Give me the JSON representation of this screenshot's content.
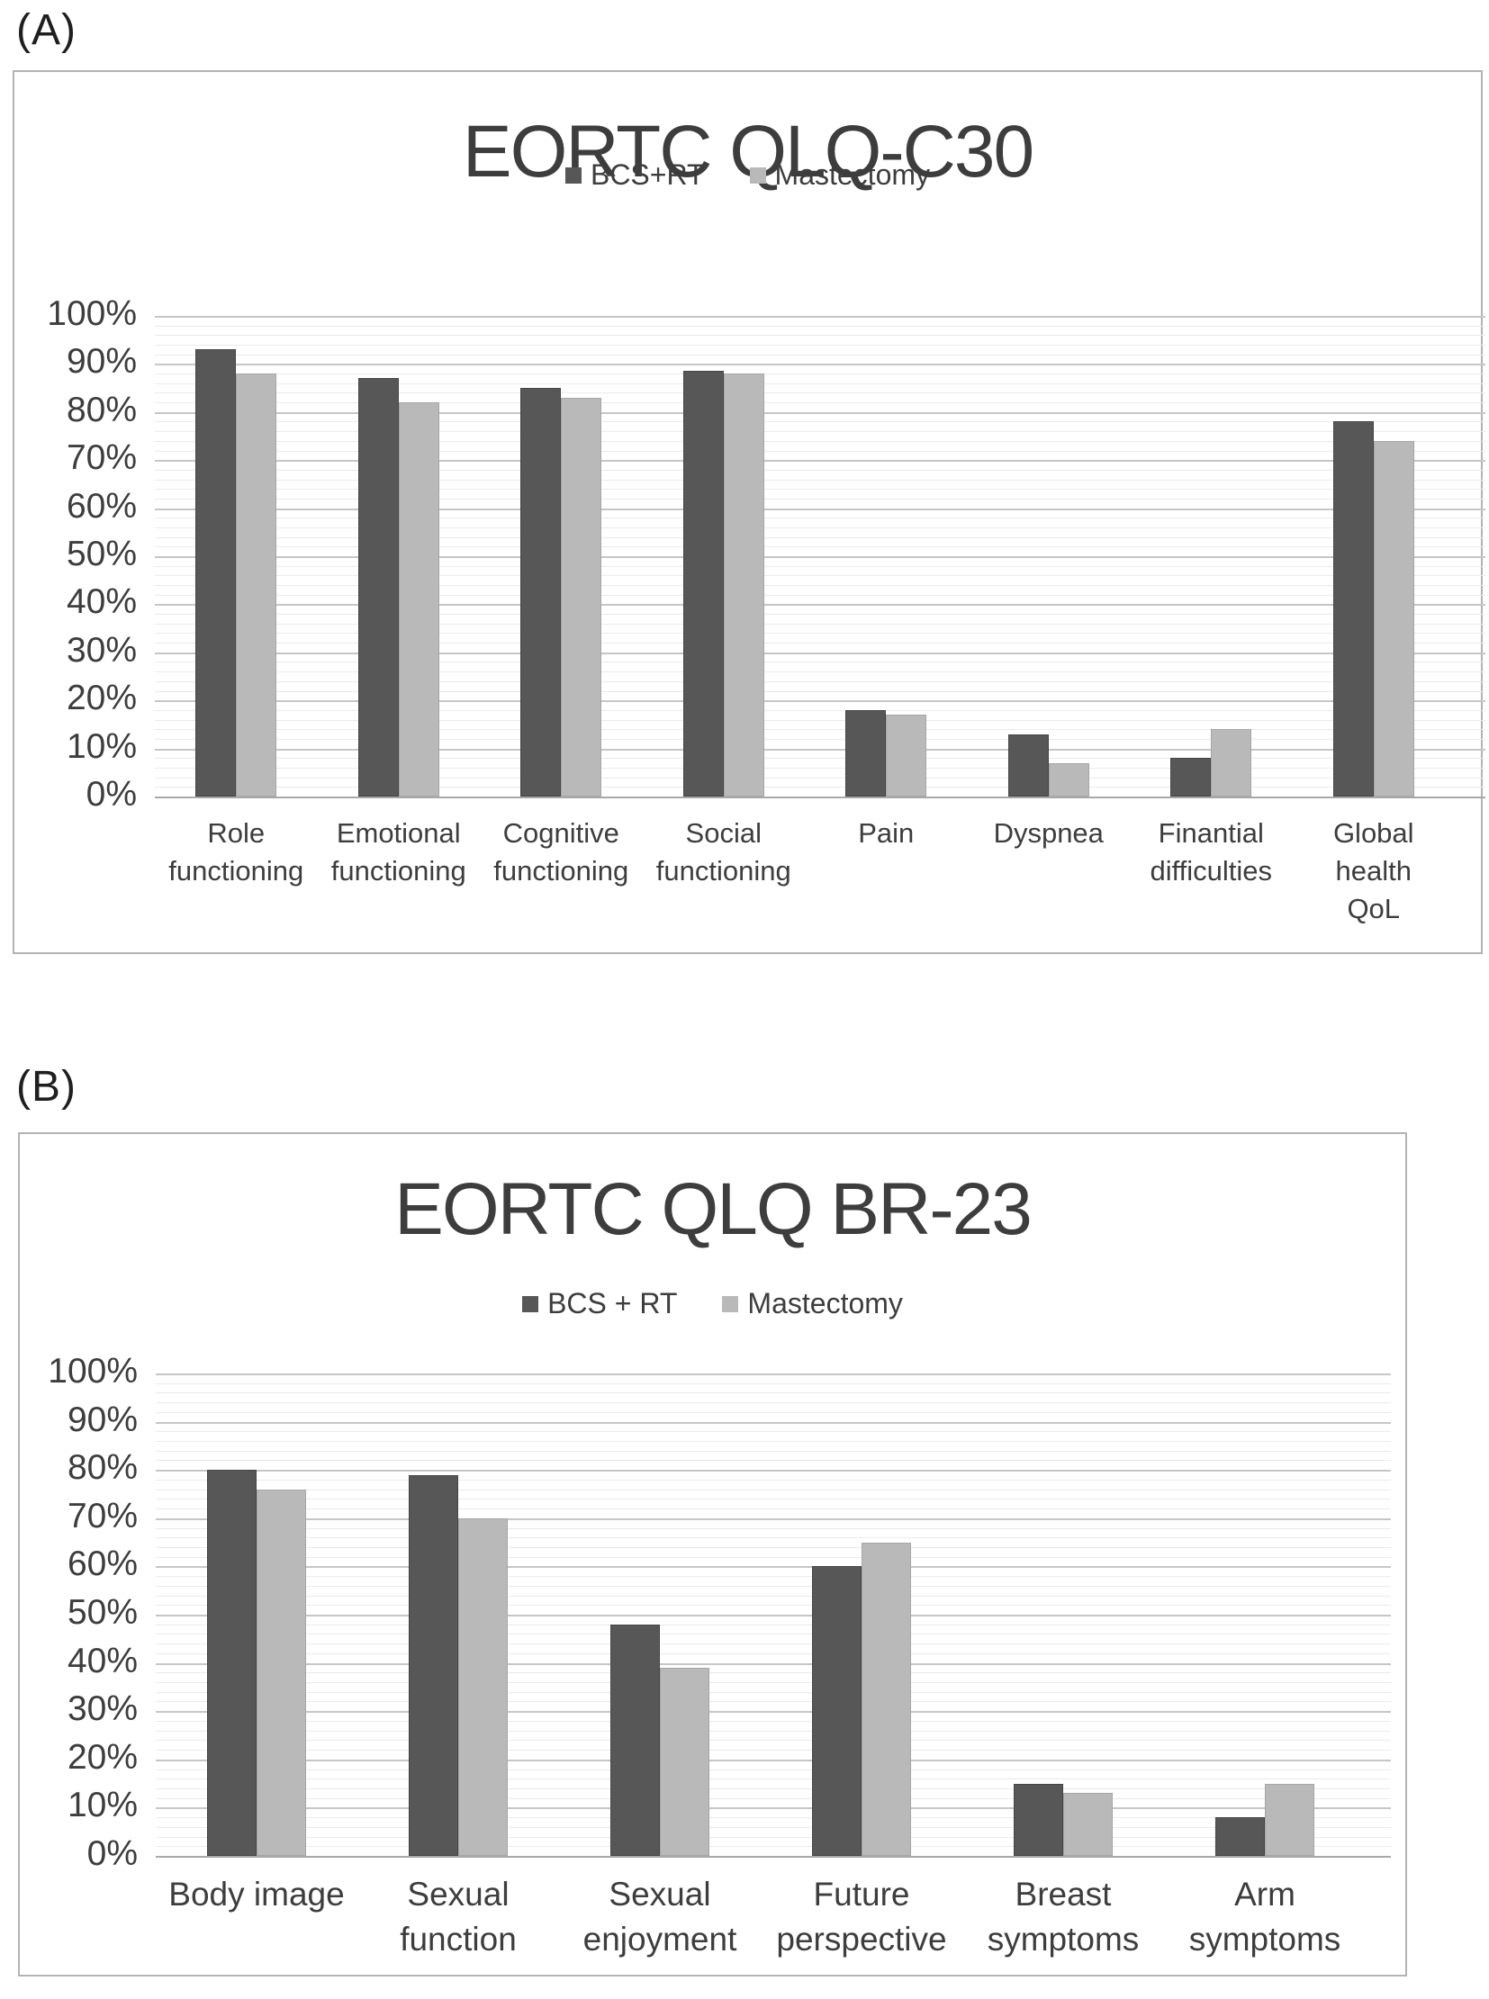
{
  "page": {
    "background": "#ffffff"
  },
  "panels": [
    {
      "label": "(A)"
    },
    {
      "label": "(B)"
    }
  ],
  "chart_data": [
    {
      "type": "bar",
      "title": "EORTC QLQ-C30",
      "xlabel": "",
      "ylabel": "",
      "ylim": [
        0,
        100
      ],
      "ytick_step": 10,
      "y_ticks": [
        "0%",
        "10%",
        "20%",
        "30%",
        "40%",
        "50%",
        "60%",
        "70%",
        "80%",
        "90%",
        "100%"
      ],
      "grid": "horizontal, major every 10%, minor every 2%",
      "legend_position": "top-center",
      "categories": [
        "Role functioning",
        "Emotional functioning",
        "Cognitive functioning",
        "Social functioning",
        "Pain",
        "Dyspnea",
        "Finantial difficulties",
        "Global health QoL"
      ],
      "category_label_lines": [
        [
          "Role",
          "functioning"
        ],
        [
          "Emotional",
          "functioning"
        ],
        [
          "Cognitive",
          "functioning"
        ],
        [
          "Social",
          "functioning"
        ],
        [
          "Pain"
        ],
        [
          "Dyspnea"
        ],
        [
          "Finantial",
          "difficulties"
        ],
        [
          "Global",
          "health",
          "QoL"
        ]
      ],
      "series": [
        {
          "name": "BCS+RT",
          "color": "#575757",
          "values": [
            93,
            87,
            85,
            88.5,
            18,
            13,
            8,
            78
          ]
        },
        {
          "name": "Mastectomy",
          "color": "#b9b9b9",
          "values": [
            88,
            82,
            83,
            88,
            17,
            7,
            14,
            74
          ]
        }
      ]
    },
    {
      "type": "bar",
      "title": "EORTC QLQ BR-23",
      "xlabel": "",
      "ylabel": "",
      "ylim": [
        0,
        100
      ],
      "ytick_step": 10,
      "y_ticks": [
        "0%",
        "10%",
        "20%",
        "30%",
        "40%",
        "50%",
        "60%",
        "70%",
        "80%",
        "90%",
        "100%"
      ],
      "grid": "horizontal, major every 10%, minor every 2%",
      "legend_position": "top-center",
      "categories": [
        "Body image",
        "Sexual function",
        "Sexual enjoyment",
        "Future perspective",
        "Breast symptoms",
        "Arm symptoms"
      ],
      "category_label_lines": [
        [
          "Body image"
        ],
        [
          "Sexual",
          "function"
        ],
        [
          "Sexual",
          "enjoyment"
        ],
        [
          "Future",
          "perspective"
        ],
        [
          "Breast",
          "symptoms"
        ],
        [
          "Arm",
          "symptoms"
        ]
      ],
      "series": [
        {
          "name": "BCS + RT",
          "color": "#575757",
          "values": [
            80,
            79,
            48,
            60,
            15,
            8
          ]
        },
        {
          "name": "Mastectomy",
          "color": "#b9b9b9",
          "values": [
            76,
            70,
            39,
            65,
            13,
            15
          ]
        }
      ]
    }
  ],
  "colors": {
    "series_dark": "#575757",
    "series_light": "#b9b9b9",
    "grid_major": "#c6c6c6",
    "grid_minor": "#ebebeb",
    "axis_line": "#a8a8a8",
    "text": "#3d3d3d",
    "frame_border": "#b3b3b3"
  }
}
